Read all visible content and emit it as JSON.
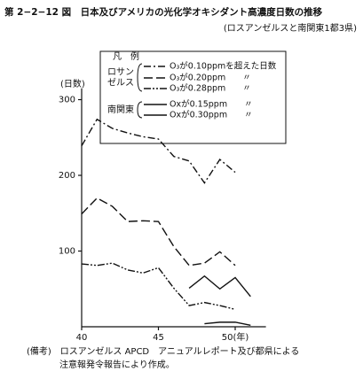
{
  "chart_data": {
    "type": "line",
    "title": "第 2−2−12 図　日本及びアメリカの光化学オキシダント高濃度日数の推移",
    "subtitle": "(ロスアンゼルスと南関東1都3県)",
    "y_label": "(日数)",
    "legend_title": "凡　例",
    "legend_groups": [
      [
        "ロサン",
        "ゼルス"
      ],
      [
        "南関東"
      ]
    ],
    "note": [
      "(備考)　ロスアンゼルス APCD　アニュアルレポート及び都県による",
      "注意報発令報告により作成。"
    ],
    "x": [
      40,
      41,
      42,
      43,
      44,
      45,
      46,
      47,
      48,
      49,
      50,
      51
    ],
    "xlim": [
      40,
      52
    ],
    "xticks": [
      40,
      45,
      {
        "value": 50,
        "label": "50(年)"
      }
    ],
    "ylim": [
      0,
      315
    ],
    "yticks": [
      100,
      200,
      300
    ],
    "grid": false,
    "series": [
      {
        "name": "O₃が0.10ppmを超えた日数",
        "group": 0,
        "color": "#111111",
        "dash": "8 3 2 3",
        "values": [
          239,
          274,
          262,
          256,
          251,
          248,
          225,
          219,
          190,
          221,
          204,
          null
        ]
      },
      {
        "name": "O₃が0.20ppm　　〃",
        "group": 0,
        "color": "#111111",
        "dash": "10 4",
        "values": [
          149,
          170,
          159,
          139,
          140,
          139,
          106,
          81,
          84,
          99,
          81,
          null
        ]
      },
      {
        "name": "O₃が0.28ppm　　〃",
        "group": 0,
        "color": "#111111",
        "dash": "8 2 2 2 2 2",
        "values": [
          83,
          81,
          84,
          75,
          71,
          78,
          51,
          28,
          32,
          28,
          23,
          null
        ]
      },
      {
        "name": "Oxが0.15ppm　　〃",
        "group": 1,
        "color": "#111111",
        "dash": "none",
        "values": [
          null,
          null,
          null,
          null,
          null,
          null,
          null,
          51,
          67,
          50,
          65,
          40
        ]
      },
      {
        "name": "Oxが0.30ppm　　〃",
        "group": 1,
        "color": "#111111",
        "dash": "none",
        "values": [
          null,
          null,
          null,
          null,
          null,
          null,
          null,
          null,
          4,
          6,
          6,
          2
        ]
      }
    ]
  }
}
